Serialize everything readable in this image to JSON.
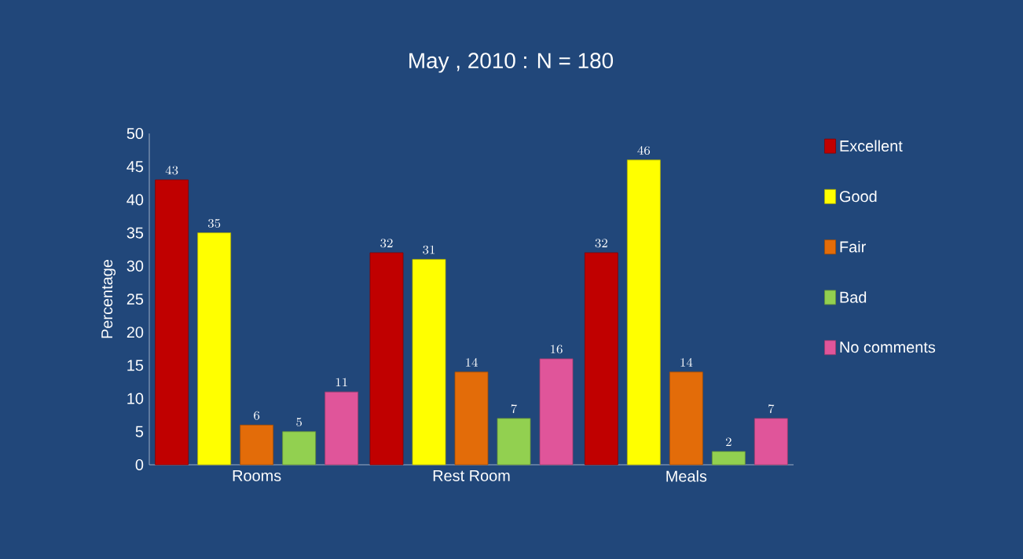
{
  "chart_data": {
    "type": "bar",
    "title": "May , 2010 : N = 180",
    "ylabel": "Percentage",
    "categories": [
      "Rooms",
      "Rest Room",
      "Meals"
    ],
    "series": [
      {
        "name": "Excellent",
        "color": "#c00000",
        "values": [
          43,
          32,
          32
        ]
      },
      {
        "name": "Good",
        "color": "#ffff00",
        "values": [
          35,
          31,
          46
        ]
      },
      {
        "name": "Fair",
        "color": "#e36c09",
        "values": [
          6,
          14,
          14
        ]
      },
      {
        "name": "Bad",
        "color": "#92d050",
        "values": [
          5,
          7,
          2
        ]
      },
      {
        "name": "No comments",
        "color": "#e0559a",
        "values": [
          11,
          16,
          7
        ]
      }
    ],
    "ylim": [
      0,
      50
    ],
    "yticks": [
      0,
      5,
      10,
      15,
      20,
      25,
      30,
      35,
      40,
      45,
      50
    ],
    "data_labels": true,
    "legend": "right",
    "grid": false
  }
}
